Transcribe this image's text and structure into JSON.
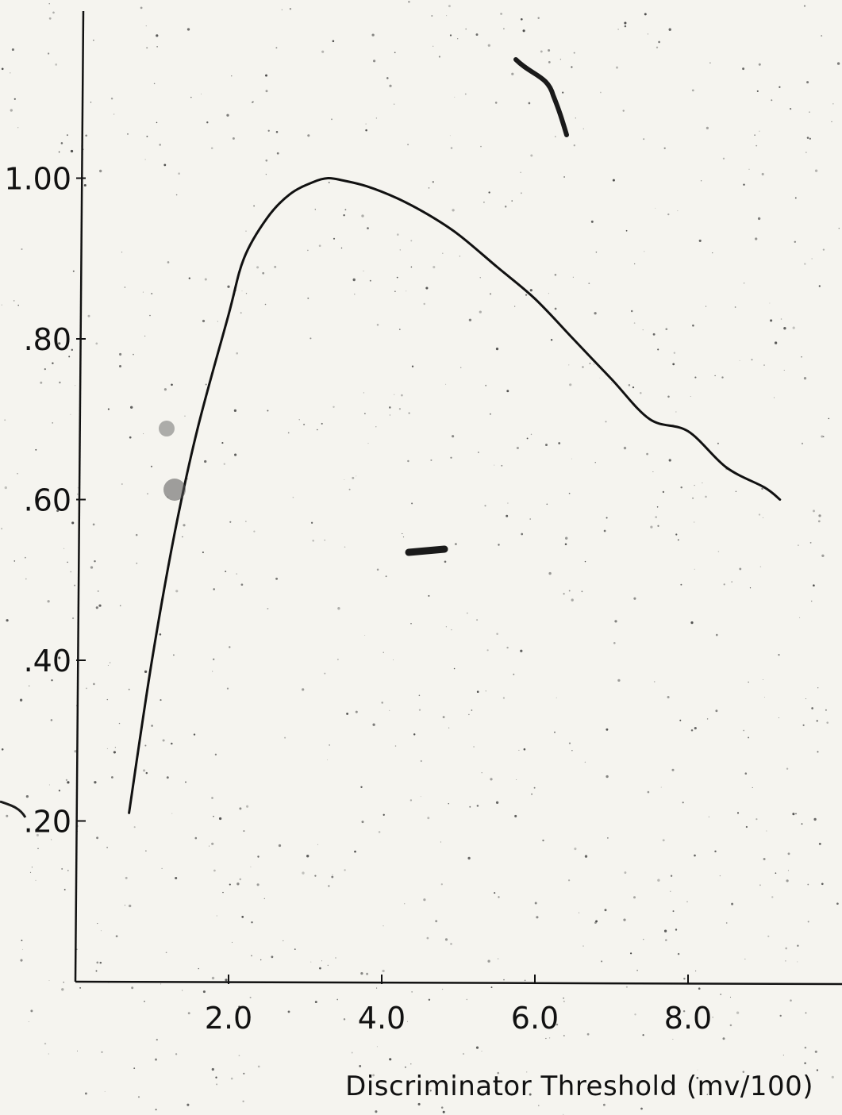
{
  "chart_data": {
    "type": "line",
    "title": "",
    "xlabel": "Discriminator Threshold (mv/100)",
    "ylabel": "",
    "xlim": [
      0,
      10
    ],
    "ylim": [
      0,
      1.2
    ],
    "x_ticks": [
      {
        "value": 2.0,
        "label": "2.0"
      },
      {
        "value": 4.0,
        "label": "4.0"
      },
      {
        "value": 6.0,
        "label": "6.0"
      },
      {
        "value": 8.0,
        "label": "8.0"
      }
    ],
    "y_ticks": [
      {
        "value": 0.2,
        "label": ".20"
      },
      {
        "value": 0.4,
        "label": ".40"
      },
      {
        "value": 0.6,
        "label": ".60"
      },
      {
        "value": 0.8,
        "label": ".80"
      },
      {
        "value": 1.0,
        "label": "1.00"
      }
    ],
    "grid": false,
    "legend": "none",
    "series": [
      {
        "x": [
          0.7,
          1.0,
          1.3,
          1.6,
          2.0,
          2.2,
          2.5,
          2.8,
          3.1,
          3.3,
          3.5,
          3.8,
          4.2,
          4.6,
          5.0,
          5.5,
          6.0,
          6.5,
          7.0,
          7.5,
          8.0,
          8.5,
          9.0,
          9.2
        ],
        "y": [
          0.21,
          0.4,
          0.56,
          0.69,
          0.83,
          0.9,
          0.95,
          0.98,
          0.995,
          1.0,
          0.997,
          0.99,
          0.975,
          0.955,
          0.93,
          0.89,
          0.85,
          0.8,
          0.75,
          0.7,
          0.685,
          0.64,
          0.615,
          0.6
        ]
      }
    ]
  },
  "colors": {
    "background": "#f5f4ef",
    "ink": "#111111"
  }
}
